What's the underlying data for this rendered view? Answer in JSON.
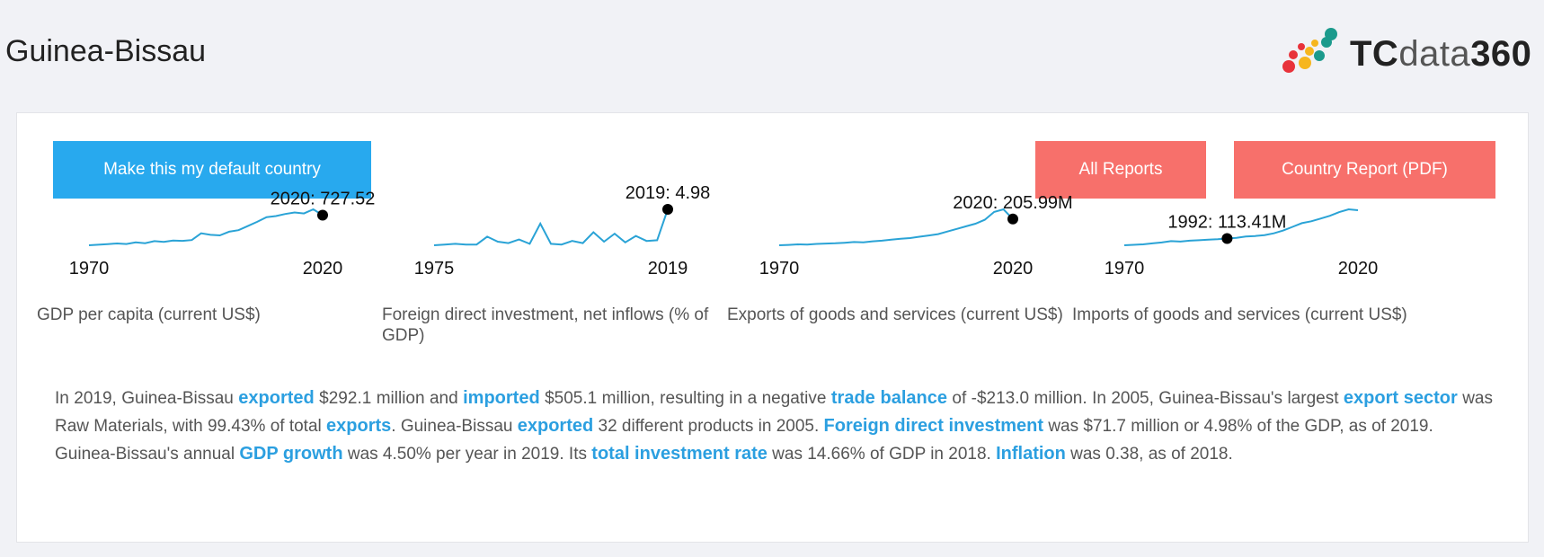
{
  "header": {
    "title": "Guinea-Bissau",
    "logo": {
      "text_bold": "TC",
      "text_light": "data",
      "text_num": "360"
    }
  },
  "buttons": {
    "default_country": "Make this my default country",
    "all_reports": "All Reports",
    "country_report": "Country Report (PDF)"
  },
  "colors": {
    "accent_blue": "#28a9ee",
    "accent_red": "#f7706b",
    "line": "#2aa3d6",
    "link": "#2b9fe0"
  },
  "sparklines": [
    {
      "id": "gdp",
      "x_start": "1970",
      "x_end": "2020",
      "point_label": "2020: 727.52",
      "caption": "GDP per capita (current US$)",
      "chart_data": {
        "type": "line",
        "x": [
          1970,
          1972,
          1974,
          1976,
          1978,
          1980,
          1982,
          1984,
          1986,
          1988,
          1990,
          1992,
          1994,
          1996,
          1998,
          2000,
          2002,
          2004,
          2006,
          2008,
          2010,
          2012,
          2014,
          2016,
          2018,
          2020
        ],
        "values": [
          150,
          160,
          170,
          185,
          175,
          205,
          190,
          230,
          215,
          240,
          235,
          250,
          380,
          350,
          340,
          410,
          440,
          520,
          600,
          690,
          710,
          750,
          780,
          760,
          840,
          727.52
        ],
        "highlight_index": 25
      }
    },
    {
      "id": "fdi",
      "x_start": "1975",
      "x_end": "2019",
      "point_label": "2019: 4.98",
      "caption": "Foreign direct investment, net inflows (% of GDP)",
      "chart_data": {
        "type": "line",
        "x": [
          1975,
          1977,
          1979,
          1981,
          1983,
          1985,
          1987,
          1989,
          1991,
          1993,
          1995,
          1997,
          1999,
          2001,
          2003,
          2005,
          2007,
          2009,
          2011,
          2013,
          2015,
          2017,
          2019
        ],
        "values": [
          0.0,
          0.1,
          0.2,
          0.1,
          0.1,
          1.2,
          0.5,
          0.3,
          0.8,
          0.2,
          3.0,
          0.2,
          0.1,
          0.6,
          0.3,
          1.8,
          0.5,
          1.6,
          0.4,
          1.3,
          0.6,
          0.7,
          4.98
        ],
        "highlight_index": 22
      }
    },
    {
      "id": "exports",
      "x_start": "1970",
      "x_end": "2020",
      "point_label": "2020: 205.99M",
      "caption": "Exports of goods and services (current US$)",
      "chart_data": {
        "type": "line",
        "x": [
          1970,
          1972,
          1974,
          1976,
          1978,
          1980,
          1982,
          1984,
          1986,
          1988,
          1990,
          1992,
          1994,
          1996,
          1998,
          2000,
          2002,
          2004,
          2006,
          2008,
          2010,
          2012,
          2014,
          2016,
          2018,
          2020
        ],
        "values": [
          5,
          8,
          12,
          10,
          15,
          18,
          20,
          24,
          30,
          28,
          35,
          40,
          48,
          55,
          60,
          70,
          80,
          90,
          110,
          130,
          150,
          170,
          200,
          260,
          280,
          205.99
        ],
        "highlight_index": 25
      }
    },
    {
      "id": "imports",
      "x_start": "1970",
      "x_end": "2020",
      "point_label": "1992: 113.41M",
      "caption": "Imports of goods and services (current US$)",
      "chart_data": {
        "type": "line",
        "x": [
          1970,
          1972,
          1974,
          1976,
          1978,
          1980,
          1982,
          1984,
          1986,
          1988,
          1990,
          1992,
          1994,
          1996,
          1998,
          2000,
          2002,
          2004,
          2006,
          2008,
          2010,
          2012,
          2014,
          2016,
          2018,
          2020
        ],
        "values": [
          40,
          45,
          50,
          60,
          70,
          85,
          80,
          90,
          95,
          100,
          105,
          113.41,
          120,
          135,
          140,
          150,
          170,
          200,
          240,
          280,
          300,
          330,
          360,
          400,
          430,
          420
        ],
        "highlight_index": 11
      }
    }
  ],
  "summary": {
    "p1": [
      {
        "t": "In 2019, Guinea-Bissau "
      },
      {
        "t": "exported",
        "hl": true
      },
      {
        "t": " $292.1 million and "
      },
      {
        "t": "imported",
        "hl": true
      },
      {
        "t": " $505.1 million, resulting in a negative "
      },
      {
        "t": "trade balance",
        "hl": true
      },
      {
        "t": " of -$213.0 million. In 2005, Guinea-Bissau's largest "
      },
      {
        "t": "export sector",
        "hl": true
      },
      {
        "t": " was Raw Materials, with 99.43% of total "
      },
      {
        "t": "exports",
        "hl": true
      },
      {
        "t": ". Guinea-Bissau "
      },
      {
        "t": "exported",
        "hl": true
      },
      {
        "t": " 32 different products in 2005. "
      },
      {
        "t": "Foreign direct investment",
        "hl": true
      },
      {
        "t": " was $71.7 million or 4.98% of the GDP, as of 2019."
      }
    ],
    "p2": [
      {
        "t": "Guinea-Bissau's annual "
      },
      {
        "t": "GDP growth",
        "hl": true
      },
      {
        "t": " was 4.50% per year in 2019. Its "
      },
      {
        "t": "total investment rate",
        "hl": true
      },
      {
        "t": " was 14.66% of GDP in 2018. "
      },
      {
        "t": "Inflation",
        "hl": true
      },
      {
        "t": " was 0.38, as of 2018."
      }
    ]
  }
}
